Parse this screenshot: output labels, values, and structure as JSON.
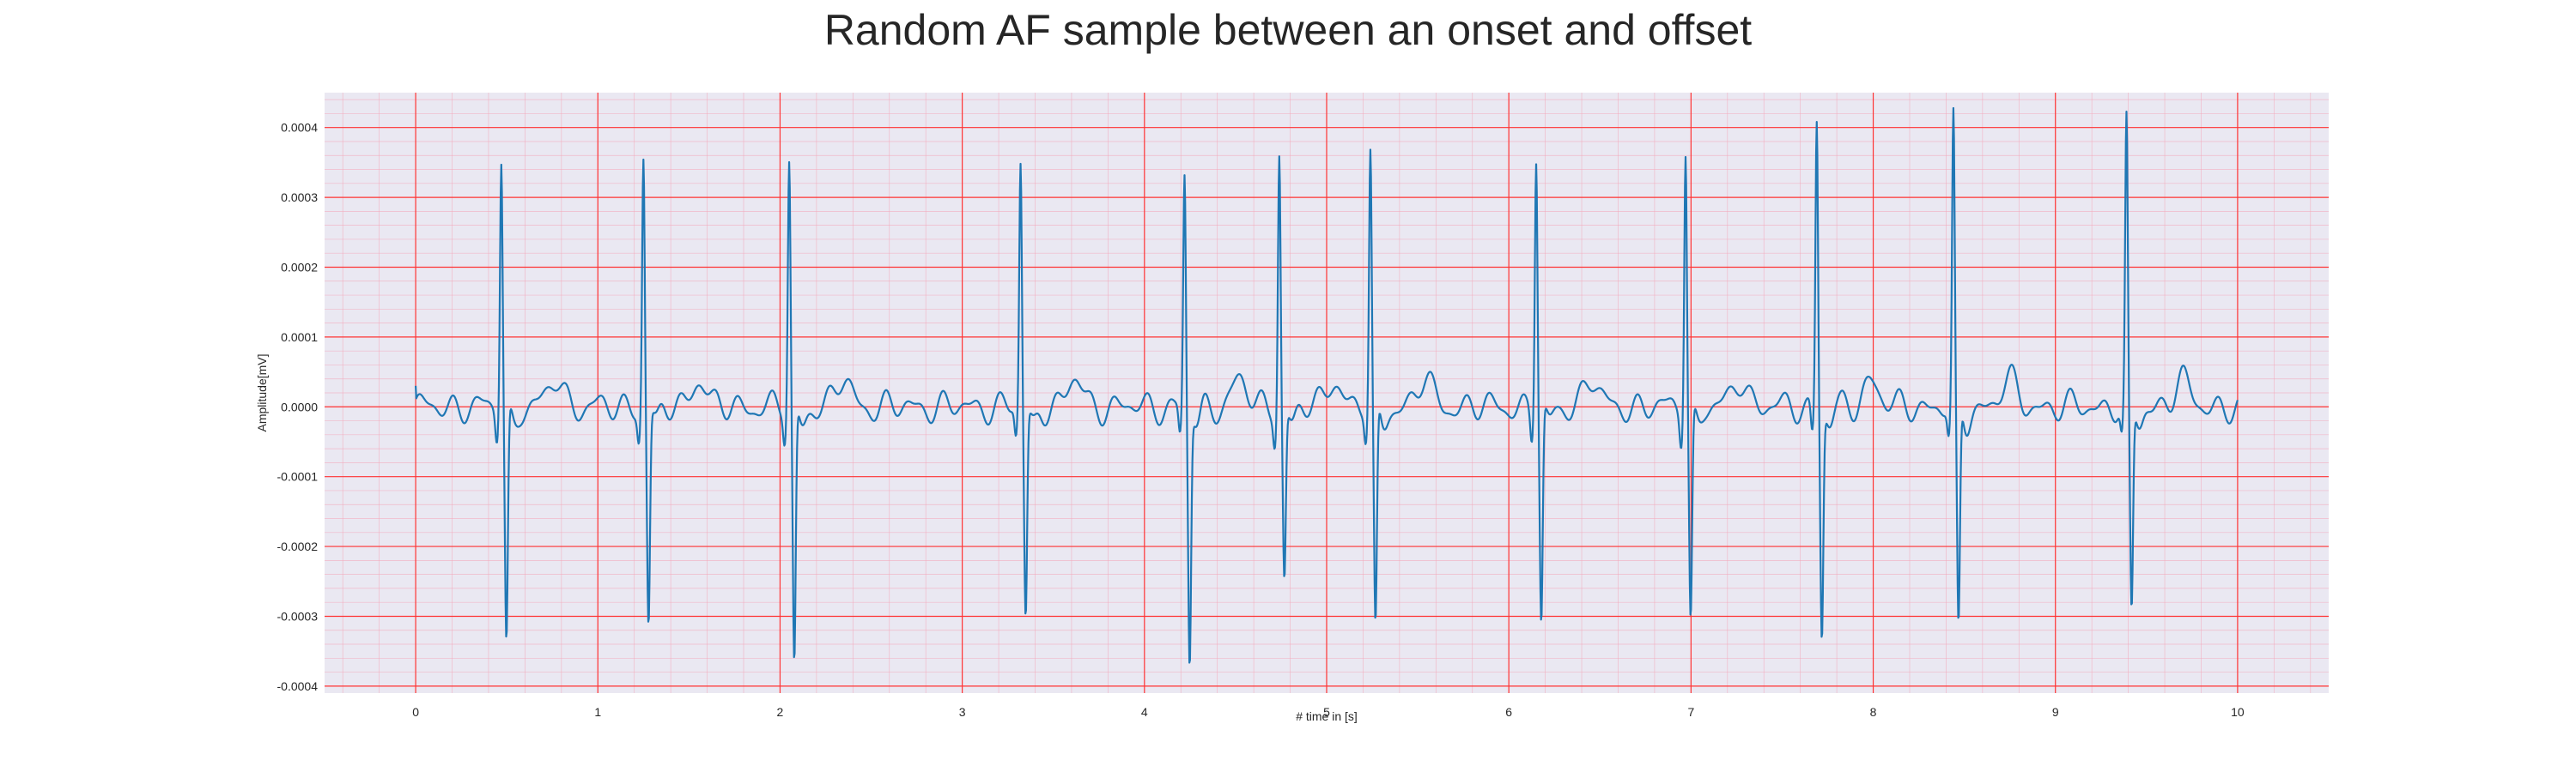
{
  "chart_data": {
    "type": "line",
    "title": "Random AF sample between an onset and offset",
    "xlabel": "# time in [s]",
    "ylabel": "Amplitude[mV]",
    "xlim": [
      -0.5,
      10.5
    ],
    "ylim": [
      -0.00041,
      0.00045
    ],
    "xticks": [
      0,
      1,
      2,
      3,
      4,
      5,
      6,
      7,
      8,
      9,
      10
    ],
    "xtick_labels": [
      "0",
      "1",
      "2",
      "3",
      "4",
      "5",
      "6",
      "7",
      "8",
      "9",
      "10"
    ],
    "yticks": [
      -0.0004,
      -0.0003,
      -0.0002,
      -0.0001,
      0.0,
      0.0001,
      0.0002,
      0.0003,
      0.0004
    ],
    "ytick_labels": [
      "-0.0004",
      "-0.0003",
      "-0.0002",
      "-0.0001",
      "0.0000",
      "0.0001",
      "0.0002",
      "0.0003",
      "0.0004"
    ],
    "grid": true,
    "minor_grid": true,
    "colors": {
      "line": "#1f77b4",
      "major_grid": "#ff3333",
      "minor_grid": "#f4a6b8",
      "plot_bg": "#eae8f2"
    },
    "series": [
      {
        "x_start": 0.0,
        "x_end": 10.0,
        "beats": [
          [
            0.47,
            0.00036,
            -0.00034
          ],
          [
            1.25,
            0.00036,
            -0.00031
          ],
          [
            2.05,
            0.000352,
            -0.000375
          ],
          [
            3.32,
            0.000348,
            -0.0003
          ],
          [
            4.22,
            0.00033,
            -0.000365
          ],
          [
            4.74,
            0.000368,
            -0.000245
          ],
          [
            5.24,
            0.000362,
            -0.000328
          ],
          [
            6.15,
            0.000365,
            -0.00031
          ],
          [
            6.97,
            0.000378,
            -0.000305
          ],
          [
            7.69,
            0.000415,
            -0.000325
          ],
          [
            8.44,
            0.000408,
            -0.000328
          ],
          [
            9.39,
            0.0004,
            -0.0003
          ]
        ]
      }
    ]
  }
}
